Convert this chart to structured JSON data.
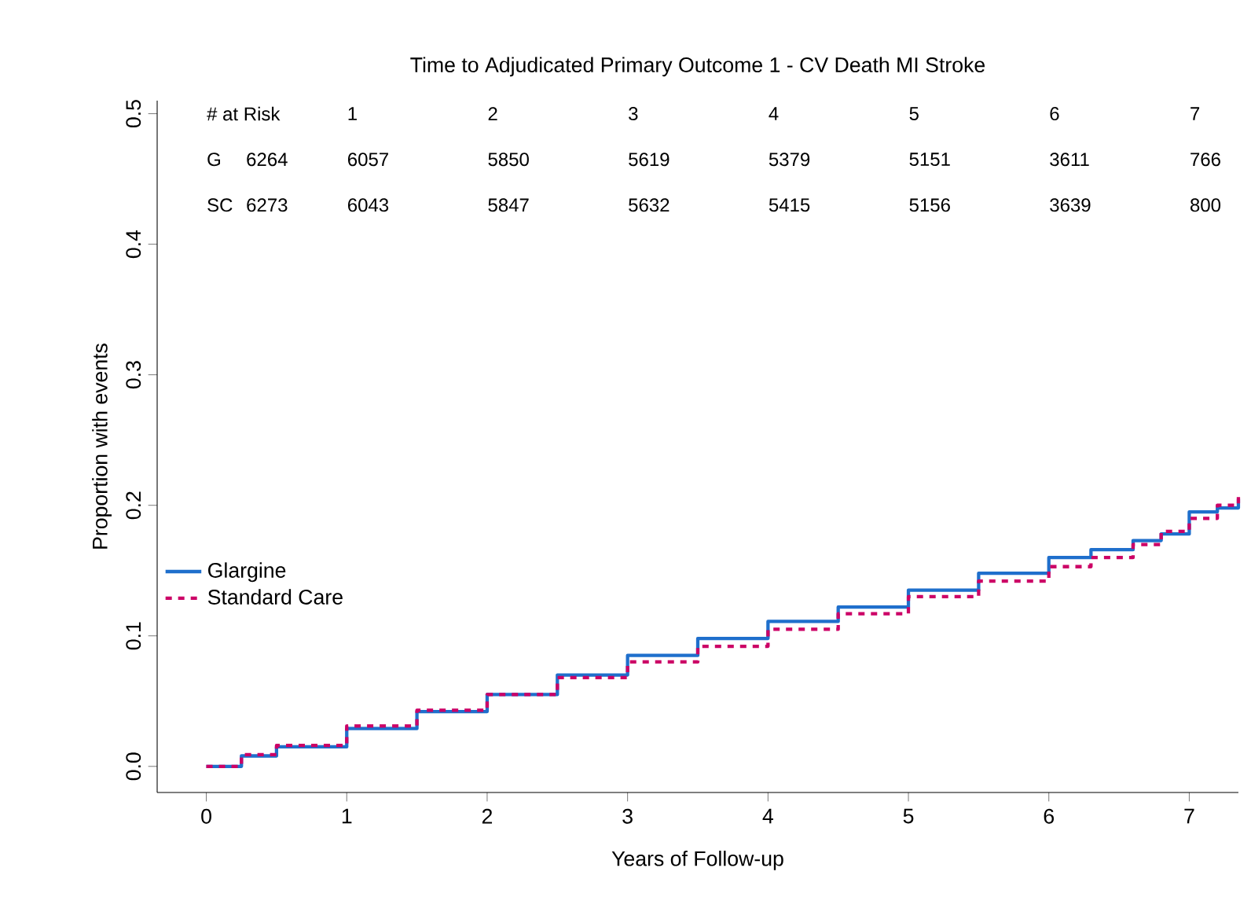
{
  "chart_data": {
    "type": "step",
    "title": "Time to Adjudicated Primary Outcome 1 - CV Death MI Stroke",
    "xlabel": "Years of Follow-up",
    "ylabel": "Proportion with events",
    "x": [
      0,
      0.25,
      0.5,
      1,
      1.5,
      2,
      2.5,
      3,
      3.5,
      4,
      4.5,
      5,
      5.5,
      6,
      6.3,
      6.6,
      6.8,
      7,
      7.2,
      7.35
    ],
    "series": [
      {
        "name": "Glargine",
        "color": "#1f6fcc",
        "line_style": "solid",
        "values": [
          0,
          0.008,
          0.015,
          0.029,
          0.042,
          0.055,
          0.07,
          0.085,
          0.098,
          0.111,
          0.122,
          0.135,
          0.148,
          0.16,
          0.166,
          0.173,
          0.178,
          0.195,
          0.198,
          0.205
        ]
      },
      {
        "name": "Standard Care",
        "color": "#cc0066",
        "line_style": "dashed",
        "values": [
          0,
          0.009,
          0.016,
          0.031,
          0.043,
          0.055,
          0.068,
          0.08,
          0.092,
          0.105,
          0.117,
          0.13,
          0.142,
          0.153,
          0.16,
          0.17,
          0.18,
          0.19,
          0.2,
          0.207
        ]
      }
    ],
    "xlim": [
      -0.35,
      7.35
    ],
    "ylim": [
      -0.02,
      0.51
    ],
    "xticks": [
      0,
      1,
      2,
      3,
      4,
      5,
      6,
      7
    ],
    "yticks": [
      {
        "value": 0,
        "label": "0.0"
      },
      {
        "value": 0.1,
        "label": "0.1"
      },
      {
        "value": 0.2,
        "label": "0.2"
      },
      {
        "value": 0.3,
        "label": "0.3"
      },
      {
        "value": 0.4,
        "label": "0.4"
      },
      {
        "value": 0.5,
        "label": "0.5"
      }
    ],
    "legend": "left",
    "grid": false,
    "annotations": [
      "# at Risk",
      "1",
      "2",
      "3",
      "4",
      "5",
      "6",
      "7",
      "G",
      "6264",
      "6057",
      "5850",
      "5619",
      "5379",
      "5151",
      "3611",
      "766",
      "SC",
      "6273",
      "6043",
      "5847",
      "5632",
      "5415",
      "5156",
      "3639",
      "800"
    ]
  }
}
